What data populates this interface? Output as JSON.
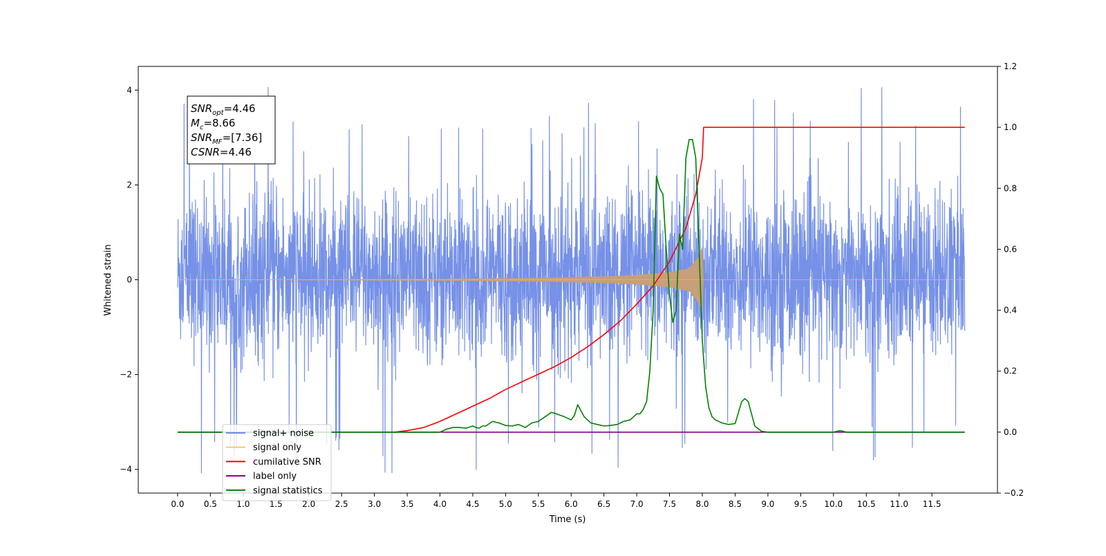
{
  "chart_data": {
    "type": "line",
    "x_axis": {
      "label": "Time (s)",
      "range": [
        -0.6,
        12.5
      ],
      "ticks": [
        0.0,
        0.5,
        1.0,
        1.5,
        2.0,
        2.5,
        3.0,
        3.5,
        4.0,
        4.5,
        5.0,
        5.5,
        6.0,
        6.5,
        7.0,
        7.5,
        8.0,
        8.5,
        9.0,
        9.5,
        10.0,
        10.5,
        11.0,
        11.5
      ],
      "tick_labels": [
        "0.0",
        "0.5",
        "1.0",
        "1.5",
        "2.0",
        "2.5",
        "3.0",
        "3.5",
        "4.0",
        "4.5",
        "5.0",
        "5.5",
        "6.0",
        "6.5",
        "7.0",
        "7.5",
        "8.0",
        "8.5",
        "9.0",
        "9.5",
        "10.0",
        "10.5",
        "11.0",
        "11.5"
      ]
    },
    "y_left": {
      "label": "Whitened strain",
      "range": [
        -4.5,
        4.5
      ],
      "ticks": [
        -4,
        -2,
        0,
        2,
        4
      ],
      "tick_labels": [
        "−4",
        "−2",
        "0",
        "2",
        "4"
      ]
    },
    "y_right": {
      "label": "",
      "range": [
        -0.2,
        1.2
      ],
      "ticks": [
        -0.2,
        0.0,
        0.2,
        0.4,
        0.6,
        0.8,
        1.0,
        1.2
      ],
      "tick_labels": [
        "−0.2",
        "0.0",
        "0.2",
        "0.4",
        "0.6",
        "0.8",
        "1.0",
        "1.2"
      ]
    },
    "info_box": [
      {
        "base": "SNR",
        "sub": "opt",
        "value": "=4.46"
      },
      {
        "base": "M",
        "sub": "c",
        "value": "=8.66"
      },
      {
        "base": "SNR",
        "sub": "MF",
        "value": "=[7.36]"
      },
      {
        "base": "CSNR",
        "sub": "",
        "value": "=4.46"
      }
    ],
    "legend": {
      "placement": "lower-left",
      "entries": [
        {
          "label": "signal+ noise",
          "color": "#6f8be6"
        },
        {
          "label": "signal only",
          "color": "#ffc864"
        },
        {
          "label": "cumilative SNR",
          "color": "#ff0000"
        },
        {
          "label": "label only",
          "color": "#800080"
        },
        {
          "label": "signal statistics",
          "color": "#008000"
        }
      ]
    },
    "series": [
      {
        "name": "signal+ noise",
        "axis": "left",
        "kind": "noise",
        "color": "#6f8be6",
        "x_range": [
          0.0,
          12.0
        ],
        "typical_band": [
          -2.0,
          2.4
        ],
        "extreme_band": [
          -4.1,
          4.1
        ]
      },
      {
        "name": "signal only",
        "axis": "left",
        "kind": "chirp",
        "color": "#c79f78",
        "x_range": [
          0.0,
          8.0
        ],
        "envelope": {
          "x": [
            0.0,
            2.0,
            4.0,
            5.5,
            6.5,
            7.0,
            7.5,
            7.8,
            7.95,
            8.0,
            8.02
          ],
          "amp": [
            0.005,
            0.01,
            0.02,
            0.04,
            0.07,
            0.1,
            0.16,
            0.24,
            0.5,
            0.7,
            0.0
          ]
        }
      },
      {
        "name": "cumilative SNR",
        "axis": "right",
        "color": "#ff0000",
        "x": [
          3.3,
          3.5,
          3.75,
          4.0,
          4.25,
          4.5,
          4.75,
          5.0,
          5.25,
          5.5,
          5.75,
          6.0,
          6.25,
          6.5,
          6.75,
          7.0,
          7.25,
          7.5,
          7.75,
          7.9,
          8.0,
          8.02,
          9.0,
          10.0,
          11.0,
          12.0
        ],
        "values": [
          0.0,
          0.005,
          0.015,
          0.035,
          0.06,
          0.085,
          0.11,
          0.14,
          0.165,
          0.19,
          0.215,
          0.245,
          0.28,
          0.32,
          0.365,
          0.42,
          0.48,
          0.56,
          0.67,
          0.78,
          0.9,
          1.0,
          1.0,
          1.0,
          1.0,
          1.0
        ]
      },
      {
        "name": "label only",
        "axis": "right",
        "color": "#800080",
        "x": [
          0.0,
          12.0
        ],
        "values": [
          0.0,
          0.0
        ]
      },
      {
        "name": "signal statistics",
        "axis": "right",
        "color": "#008000",
        "x": [
          0.0,
          3.5,
          3.8,
          4.0,
          4.1,
          4.2,
          4.3,
          4.4,
          4.5,
          4.55,
          4.6,
          4.65,
          4.7,
          4.8,
          4.9,
          5.0,
          5.1,
          5.2,
          5.3,
          5.4,
          5.5,
          5.6,
          5.7,
          5.8,
          5.9,
          6.0,
          6.05,
          6.1,
          6.2,
          6.3,
          6.4,
          6.5,
          6.6,
          6.7,
          6.8,
          6.9,
          7.0,
          7.05,
          7.1,
          7.15,
          7.2,
          7.25,
          7.3,
          7.35,
          7.4,
          7.45,
          7.5,
          7.55,
          7.6,
          7.65,
          7.7,
          7.75,
          7.8,
          7.85,
          7.9,
          7.95,
          8.0,
          8.05,
          8.1,
          8.15,
          8.2,
          8.3,
          8.4,
          8.5,
          8.6,
          8.65,
          8.7,
          8.75,
          8.8,
          8.9,
          9.0,
          9.5,
          10.0,
          10.1,
          10.2,
          10.5,
          12.0
        ],
        "values": [
          0.0,
          0.0,
          0.0,
          0.0,
          0.01,
          0.015,
          0.015,
          0.013,
          0.02,
          0.015,
          0.013,
          0.02,
          0.02,
          0.035,
          0.03,
          0.022,
          0.02,
          0.025,
          0.015,
          0.03,
          0.035,
          0.05,
          0.065,
          0.058,
          0.05,
          0.04,
          0.055,
          0.09,
          0.05,
          0.03,
          0.025,
          0.02,
          0.022,
          0.025,
          0.035,
          0.04,
          0.06,
          0.06,
          0.075,
          0.1,
          0.2,
          0.4,
          0.84,
          0.8,
          0.78,
          0.6,
          0.45,
          0.36,
          0.4,
          0.65,
          0.6,
          0.9,
          0.96,
          0.96,
          0.9,
          0.6,
          0.3,
          0.15,
          0.08,
          0.05,
          0.04,
          0.03,
          0.025,
          0.028,
          0.1,
          0.11,
          0.1,
          0.06,
          0.02,
          0.003,
          0.0,
          0.0,
          0.0,
          0.005,
          0.0,
          0.0,
          0.0
        ]
      }
    ]
  }
}
